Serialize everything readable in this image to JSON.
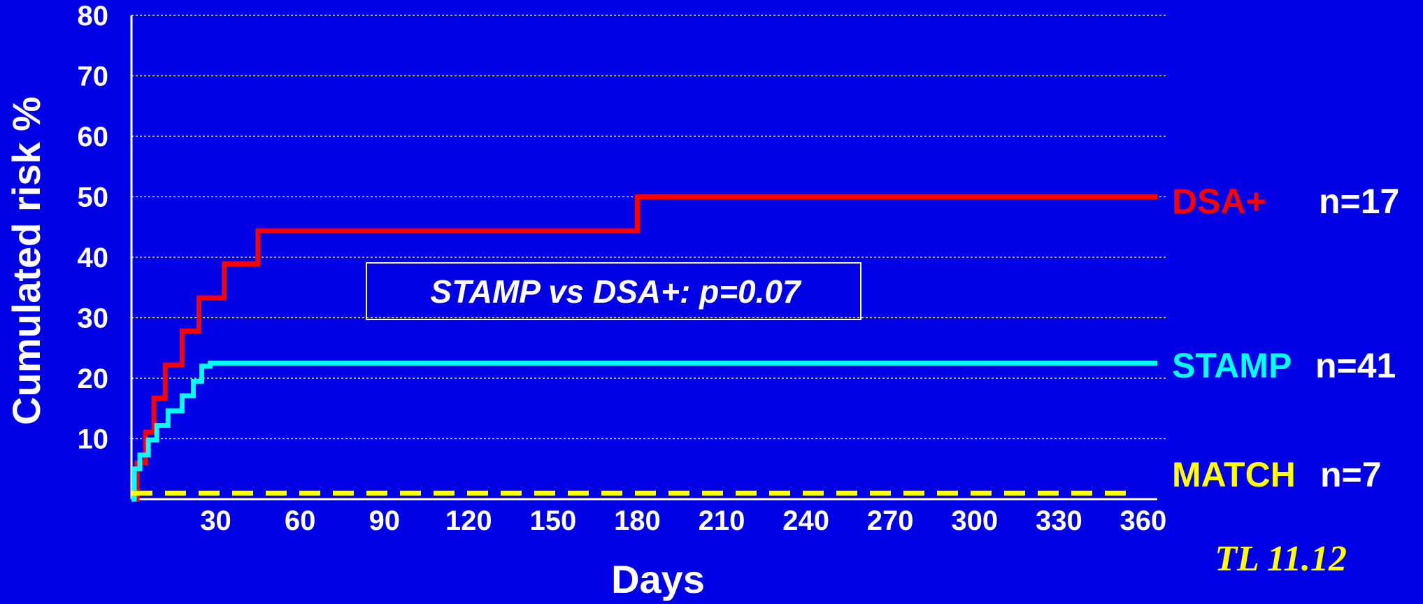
{
  "chart_data": {
    "type": "line",
    "step": true,
    "title": "",
    "xlabel": "Days",
    "ylabel": "Cumulated risk %",
    "xlim": [
      0,
      365
    ],
    "ylim": [
      0,
      80
    ],
    "x_ticks": [
      30,
      60,
      90,
      120,
      150,
      180,
      210,
      240,
      270,
      300,
      330,
      360
    ],
    "y_ticks": [
      10,
      20,
      30,
      40,
      50,
      60,
      70,
      80
    ],
    "grid": "horizontal-dashed",
    "background": "#0000E6",
    "series": [
      {
        "name": "DSA+",
        "n_label": "n=17",
        "color": "#FF0000",
        "style": "step",
        "x": [
          0,
          2,
          5,
          8,
          12,
          18,
          24,
          33,
          45,
          180,
          365
        ],
        "y": [
          0,
          6,
          11.1,
          16.7,
          22.2,
          27.8,
          33.3,
          38.9,
          44.4,
          50,
          50
        ]
      },
      {
        "name": "STAMP",
        "n_label": "n=41",
        "color": "#00FFFF",
        "style": "step",
        "x": [
          0,
          1,
          3,
          6,
          9,
          13,
          18,
          22,
          25,
          28,
          365
        ],
        "y": [
          0,
          5,
          7.3,
          9.8,
          12.2,
          14.6,
          17.1,
          19.5,
          22,
          22.5,
          22.5
        ]
      },
      {
        "name": "MATCH",
        "n_label": "n=7",
        "color": "#FFFF00",
        "style": "dashed",
        "x": [
          0,
          355
        ],
        "y": [
          1,
          1
        ]
      }
    ],
    "annotations": [
      {
        "text": "STAMP vs DSA+: p=0.07"
      }
    ],
    "footer": "TL 11.12"
  }
}
